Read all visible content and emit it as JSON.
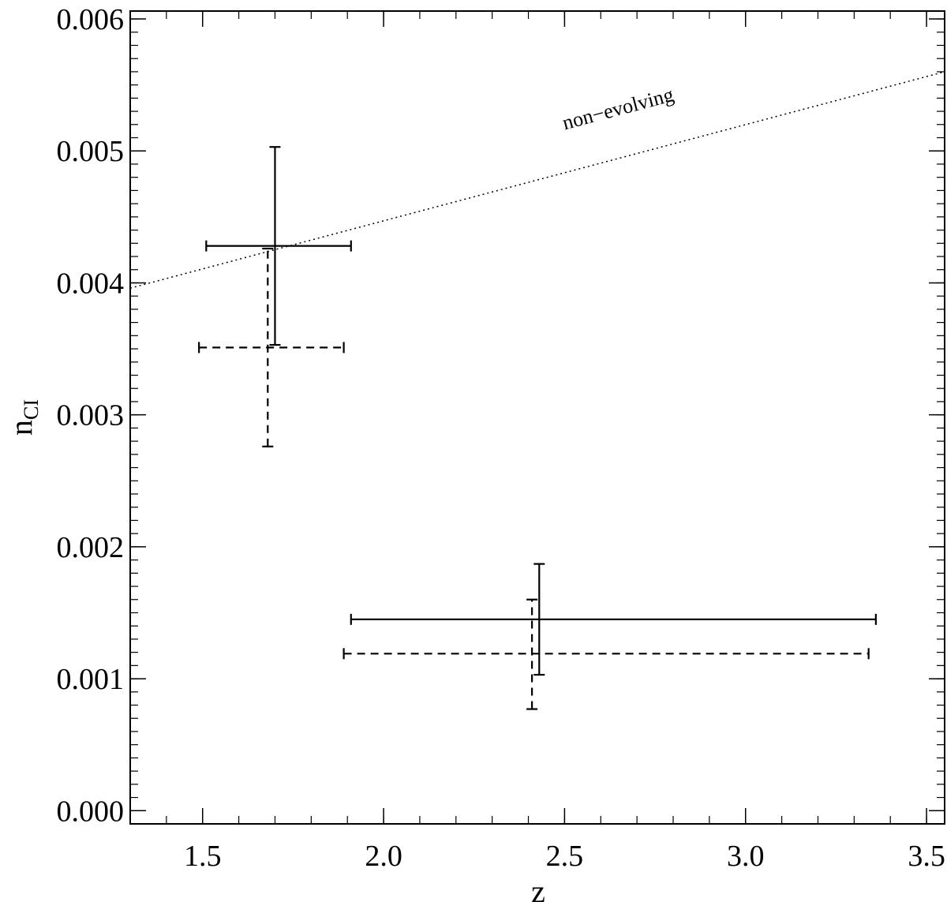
{
  "chart_data": {
    "type": "scatter",
    "title": "",
    "xlabel": "z",
    "ylabel": "n",
    "ylabel_subscript": "CI",
    "xlim": [
      1.3,
      3.55
    ],
    "ylim": [
      -0.0001,
      0.00606
    ],
    "x_ticks": [
      1.5,
      2.0,
      2.5,
      3.0,
      3.5
    ],
    "x_tick_labels": [
      "1.5",
      "2.0",
      "2.5",
      "3.0",
      "3.5"
    ],
    "x_minor_step": 0.1,
    "y_ticks": [
      0.0,
      0.001,
      0.002,
      0.003,
      0.004,
      0.005,
      0.006
    ],
    "y_tick_labels": [
      "0.000",
      "0.001",
      "0.002",
      "0.003",
      "0.004",
      "0.005",
      "0.006"
    ],
    "y_minor_step": 0.0001,
    "grid": false,
    "legend": "none",
    "series": [
      {
        "style": "solid",
        "points": [
          {
            "x": 1.7,
            "y": 0.00428,
            "xerr": [
              1.51,
              1.91
            ],
            "yerr": [
              0.00353,
              0.00503
            ]
          },
          {
            "x": 2.43,
            "y": 0.00145,
            "xerr": [
              1.91,
              3.36
            ],
            "yerr": [
              0.00103,
              0.00187
            ]
          }
        ]
      },
      {
        "style": "dashed",
        "points": [
          {
            "x": 1.68,
            "y": 0.00351,
            "xerr": [
              1.49,
              1.89
            ],
            "yerr": [
              0.00276,
              0.00426
            ]
          },
          {
            "x": 2.41,
            "y": 0.00119,
            "xerr": [
              1.89,
              3.34
            ],
            "yerr": [
              0.00077,
              0.0016
            ]
          }
        ]
      }
    ],
    "reference_line": {
      "label": "non−evolving",
      "style": "dotted",
      "x": [
        1.3,
        3.55
      ],
      "y": [
        0.00396,
        0.0056
      ],
      "label_at": {
        "x": 2.5,
        "y": 0.00516
      }
    }
  }
}
